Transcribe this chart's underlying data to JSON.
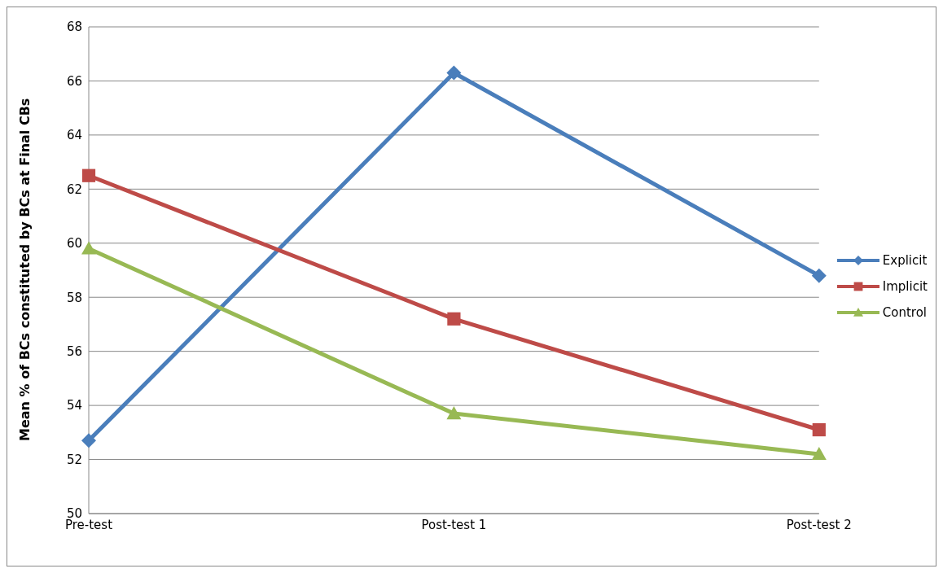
{
  "chart_data": {
    "type": "line",
    "ylabel": "Mean % of BCs constituted by BCs at Final CBs",
    "categories": [
      "Pre-test",
      "Post-test 1",
      "Post-test 2"
    ],
    "series": [
      {
        "name": "Explicit",
        "color": "#4a7ebb",
        "marker": "diamond",
        "values": [
          52.7,
          66.3,
          58.8
        ]
      },
      {
        "name": "Implicit",
        "color": "#be4b48",
        "marker": "square",
        "values": [
          62.5,
          57.2,
          53.1
        ]
      },
      {
        "name": "Control",
        "color": "#98b954",
        "marker": "triangle",
        "values": [
          59.8,
          53.7,
          52.2
        ]
      }
    ],
    "ylim": [
      50,
      68
    ],
    "yticks": [
      50,
      52,
      54,
      56,
      58,
      60,
      62,
      64,
      66,
      68
    ],
    "grid": "y",
    "legend": "right",
    "line_style": "solid"
  }
}
